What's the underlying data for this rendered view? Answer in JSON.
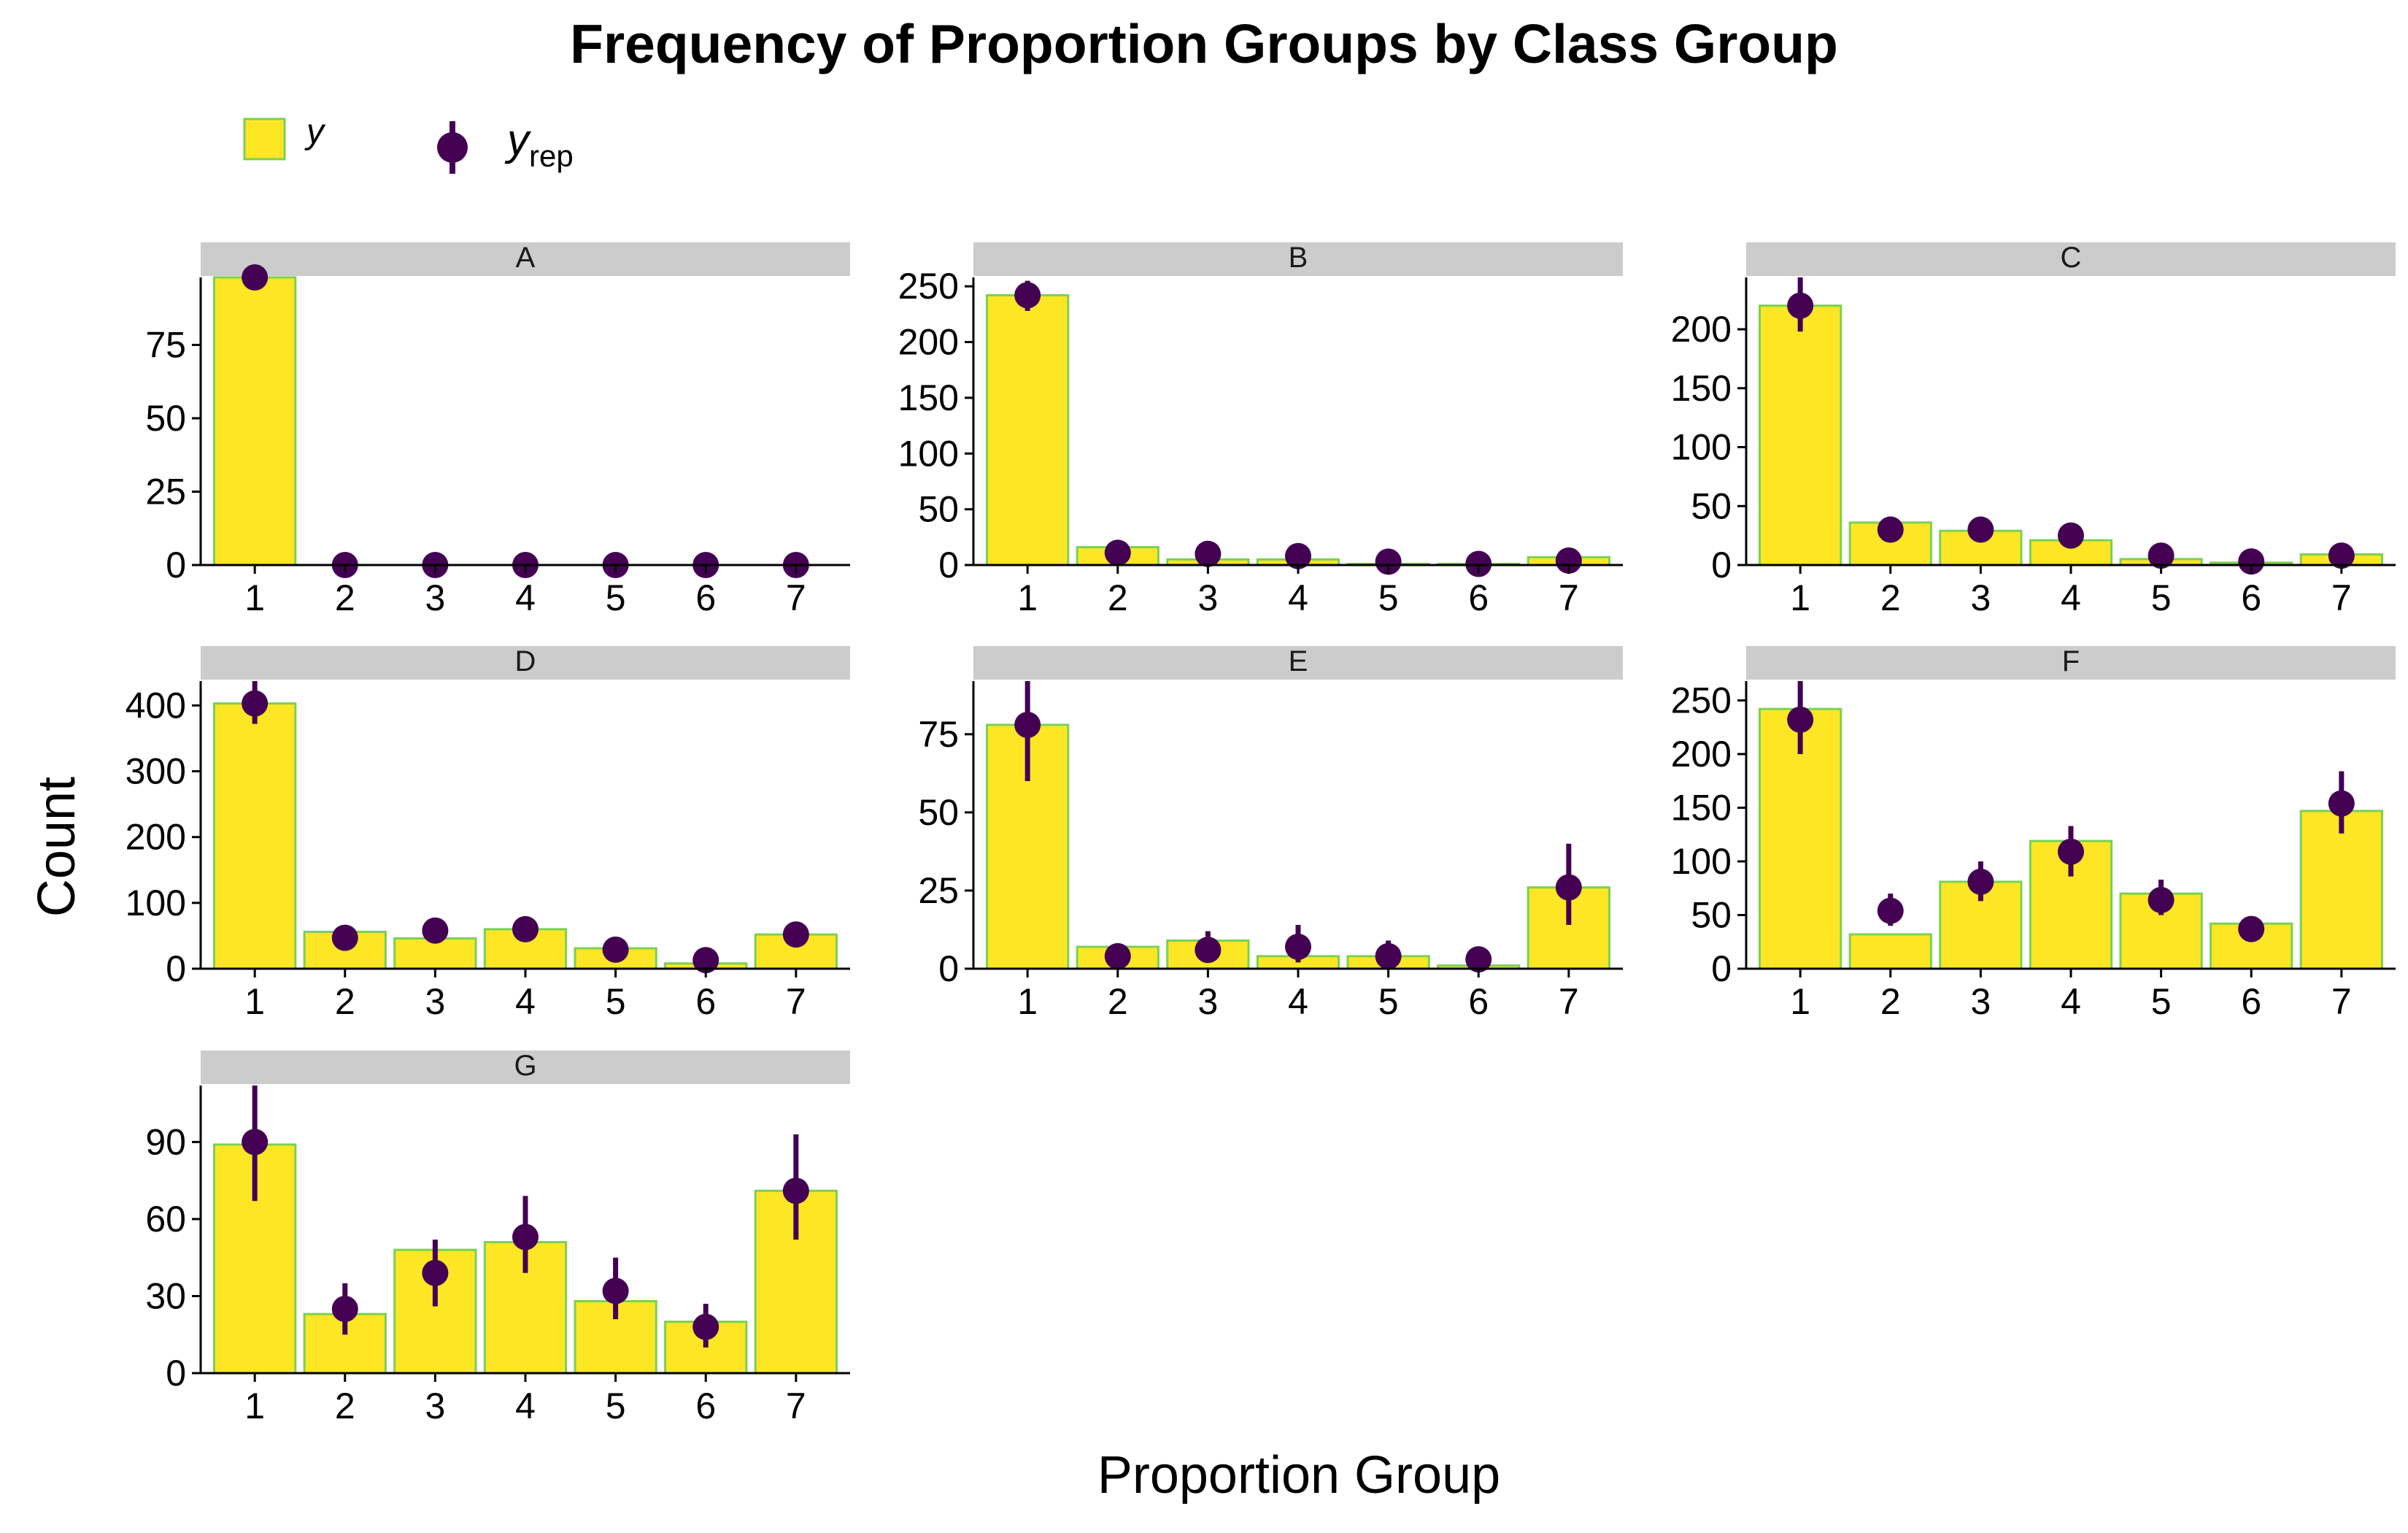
{
  "title": "Frequency of Proportion Groups by Class Group",
  "legend": {
    "position": "top-left",
    "items": [
      {
        "key": "y",
        "label": "y",
        "kind": "bar"
      },
      {
        "key": "yrep",
        "label": "y",
        "subscript": "rep",
        "kind": "point-interval"
      }
    ]
  },
  "colors": {
    "bar_fill": "#FDE725",
    "bar_stroke": "#7AD151",
    "point": "#440154",
    "strip": "#CCCCCC",
    "axis": "#000000"
  },
  "chart_data": {
    "type": "bar",
    "xlabel": "Proportion Group",
    "ylabel": "Count",
    "categories": [
      "1",
      "2",
      "3",
      "4",
      "5",
      "6",
      "7"
    ],
    "panels": [
      {
        "label": "A",
        "ylim": [
          0,
          98
        ],
        "yticks": [
          0,
          25,
          50,
          75
        ],
        "y": [
          98,
          0,
          0,
          0,
          0,
          0,
          0
        ],
        "yrep": [
          98,
          0,
          0,
          0,
          0,
          0,
          0
        ],
        "yrep_low": [
          98,
          0,
          0,
          0,
          0,
          0,
          0
        ],
        "yrep_high": [
          98,
          0,
          0,
          0,
          0,
          0,
          0
        ]
      },
      {
        "label": "B",
        "ylim": [
          0,
          258
        ],
        "yticks": [
          0,
          50,
          100,
          150,
          200,
          250
        ],
        "y": [
          242,
          16,
          5,
          5,
          1,
          1,
          7
        ],
        "yrep": [
          242,
          11,
          10,
          8,
          3,
          1,
          4
        ],
        "yrep_low": [
          228,
          5,
          4,
          3,
          1,
          0,
          1
        ],
        "yrep_high": [
          255,
          16,
          15,
          13,
          6,
          3,
          7
        ]
      },
      {
        "label": "C",
        "ylim": [
          0,
          244
        ],
        "yticks": [
          0,
          50,
          100,
          150,
          200
        ],
        "y": [
          220,
          36,
          29,
          21,
          5,
          2,
          9
        ],
        "yrep": [
          220,
          30,
          30,
          25,
          8,
          3,
          8
        ],
        "yrep_low": [
          198,
          20,
          20,
          16,
          3,
          0,
          3
        ],
        "yrep_high": [
          244,
          41,
          41,
          33,
          13,
          6,
          13
        ]
      },
      {
        "label": "D",
        "ylim": [
          0,
          437
        ],
        "yticks": [
          0,
          100,
          200,
          300,
          400
        ],
        "y": [
          403,
          56,
          46,
          60,
          31,
          8,
          52
        ],
        "yrep": [
          403,
          47,
          58,
          60,
          29,
          13,
          52
        ],
        "yrep_low": [
          372,
          34,
          44,
          46,
          19,
          6,
          39
        ],
        "yrep_high": [
          437,
          60,
          72,
          74,
          39,
          22,
          65
        ]
      },
      {
        "label": "E",
        "ylim": [
          0,
          92
        ],
        "yticks": [
          0,
          25,
          50,
          75
        ],
        "y": [
          78,
          7,
          9,
          4,
          4,
          1,
          26
        ],
        "yrep": [
          78,
          4,
          6,
          7,
          4,
          3,
          26
        ],
        "yrep_low": [
          60,
          1,
          2,
          2,
          1,
          0,
          14
        ],
        "yrep_high": [
          92,
          8,
          12,
          14,
          9,
          5,
          40
        ]
      },
      {
        "label": "F",
        "ylim": [
          0,
          268
        ],
        "yticks": [
          0,
          50,
          100,
          150,
          200,
          250
        ],
        "y": [
          242,
          32,
          81,
          119,
          70,
          42,
          147
        ],
        "yrep": [
          232,
          54,
          81,
          109,
          64,
          37,
          154
        ],
        "yrep_low": [
          200,
          40,
          63,
          86,
          50,
          28,
          126
        ],
        "yrep_high": [
          268,
          70,
          100,
          133,
          83,
          48,
          184
        ]
      },
      {
        "label": "G",
        "ylim": [
          0,
          112
        ],
        "yticks": [
          0,
          30,
          60,
          90
        ],
        "y": [
          89,
          23,
          48,
          51,
          28,
          20,
          71
        ],
        "yrep": [
          90,
          25,
          39,
          53,
          32,
          18,
          71
        ],
        "yrep_low": [
          67,
          15,
          26,
          39,
          21,
          10,
          52
        ],
        "yrep_high": [
          112,
          35,
          52,
          69,
          45,
          27,
          93
        ]
      }
    ]
  }
}
